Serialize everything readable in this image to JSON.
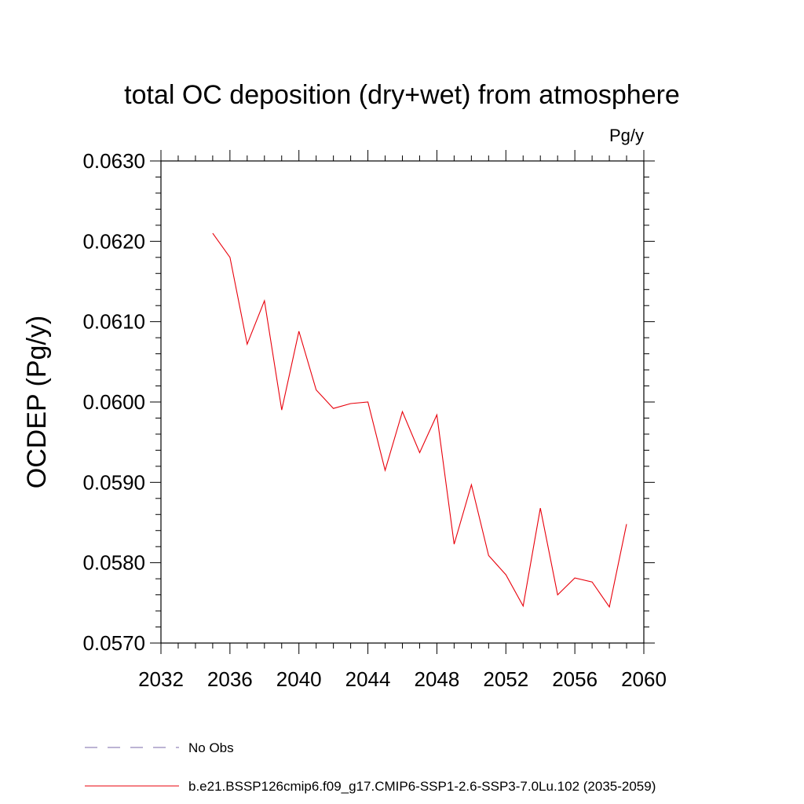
{
  "chart_data": {
    "type": "line",
    "title": "total OC deposition (dry+wet) from atmosphere",
    "units_label": "Pg/y",
    "ylabel": "OCDEP  (Pg/y)",
    "xlabel": "",
    "xlim": [
      2032,
      2060
    ],
    "ylim": [
      0.057,
      0.063
    ],
    "x_ticks": [
      2032,
      2036,
      2040,
      2044,
      2048,
      2052,
      2056,
      2060
    ],
    "x_tick_labels": [
      "2032",
      "2036",
      "2040",
      "2044",
      "2048",
      "2052",
      "2056",
      "2060"
    ],
    "y_ticks": [
      0.057,
      0.058,
      0.059,
      0.06,
      0.061,
      0.062,
      0.063
    ],
    "y_tick_labels": [
      "0.0570",
      "0.0580",
      "0.0590",
      "0.0600",
      "0.0610",
      "0.0620",
      "0.0630"
    ],
    "grid": false,
    "legend_position": "bottom",
    "series": [
      {
        "name": "b.e21.BSSP126cmip6.f09_g17.CMIP6-SSP1-2.6-SSP3-7.0Lu.102 (2035-2059)",
        "color": "#e8000b",
        "style": "solid",
        "x": [
          2035,
          2036,
          2037,
          2038,
          2039,
          2040,
          2041,
          2042,
          2043,
          2044,
          2045,
          2046,
          2047,
          2048,
          2049,
          2050,
          2051,
          2052,
          2053,
          2054,
          2055,
          2056,
          2057,
          2058,
          2059
        ],
        "values": [
          0.0621,
          0.0618,
          0.06072,
          0.06126,
          0.0599,
          0.06088,
          0.06015,
          0.05992,
          0.05998,
          0.06,
          0.05915,
          0.05988,
          0.05937,
          0.05984,
          0.05823,
          0.05897,
          0.05809,
          0.05785,
          0.05746,
          0.05868,
          0.0576,
          0.05781,
          0.05776,
          0.05745,
          0.05848
        ]
      }
    ],
    "legend": [
      {
        "label": "No Obs",
        "color": "#7a6aa8",
        "style": "dashed"
      },
      {
        "label": "b.e21.BSSP126cmip6.f09_g17.CMIP6-SSP1-2.6-SSP3-7.0Lu.102 (2035-2059)",
        "color": "#e8000b",
        "style": "solid"
      }
    ]
  }
}
